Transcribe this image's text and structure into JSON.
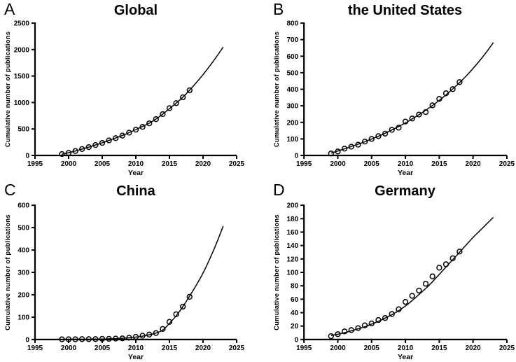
{
  "figure": {
    "background": "#ffffff",
    "ink": "#000000",
    "marker": "open-circle"
  },
  "chart_data": [
    {
      "type": "scatter",
      "panel": "A",
      "title": "Global",
      "xlabel": "Year",
      "ylabel": "Cumulative number of publications",
      "xlim": [
        1995,
        2025
      ],
      "xticks": [
        1995,
        2000,
        2005,
        2010,
        2015,
        2020,
        2025
      ],
      "ylim": [
        0,
        2500
      ],
      "yticks": [
        0,
        500,
        1000,
        1500,
        2000,
        2500
      ],
      "grid": false,
      "legend": null,
      "series": [
        {
          "name": "observed",
          "style": "scatter",
          "x": [
            1999,
            2000,
            2001,
            2002,
            2003,
            2004,
            2005,
            2006,
            2007,
            2008,
            2009,
            2010,
            2011,
            2012,
            2013,
            2014,
            2015,
            2016,
            2017,
            2018
          ],
          "y": [
            26,
            48,
            83,
            122,
            158,
            197,
            237,
            285,
            327,
            374,
            430,
            487,
            540,
            606,
            685,
            780,
            893,
            988,
            1099,
            1232
          ]
        },
        {
          "name": "fit",
          "style": "line",
          "x": [
            1999,
            2000,
            2001,
            2002,
            2003,
            2004,
            2005,
            2006,
            2007,
            2008,
            2009,
            2010,
            2011,
            2012,
            2013,
            2014,
            2015,
            2016,
            2017,
            2018,
            2019,
            2020,
            2021,
            2022,
            2023
          ],
          "y": [
            24,
            52,
            85,
            121,
            158,
            198,
            240,
            285,
            329,
            377,
            431,
            489,
            547,
            610,
            688,
            780,
            884,
            988,
            1100,
            1233,
            1376,
            1527,
            1690,
            1864,
            2048
          ]
        }
      ]
    },
    {
      "type": "scatter",
      "panel": "B",
      "title": "the United States",
      "xlabel": "Year",
      "ylabel": "Cumulative number of publications",
      "xlim": [
        1995,
        2025
      ],
      "xticks": [
        1995,
        2000,
        2005,
        2010,
        2015,
        2020,
        2025
      ],
      "ylim": [
        0,
        800
      ],
      "yticks": [
        0,
        100,
        200,
        300,
        400,
        500,
        600,
        700,
        800
      ],
      "grid": false,
      "legend": null,
      "series": [
        {
          "name": "observed",
          "style": "scatter",
          "x": [
            1999,
            2000,
            2001,
            2002,
            2003,
            2004,
            2005,
            2006,
            2007,
            2008,
            2009,
            2010,
            2011,
            2012,
            2013,
            2014,
            2015,
            2016,
            2017,
            2018
          ],
          "y": [
            12,
            24,
            41,
            53,
            65,
            84,
            100,
            117,
            132,
            155,
            168,
            205,
            223,
            247,
            262,
            303,
            342,
            376,
            401,
            443
          ]
        },
        {
          "name": "fit",
          "style": "line",
          "x": [
            1999,
            2000,
            2001,
            2002,
            2003,
            2004,
            2005,
            2006,
            2007,
            2008,
            2009,
            2010,
            2011,
            2012,
            2013,
            2014,
            2015,
            2016,
            2017,
            2018,
            2019,
            2020,
            2021,
            2022,
            2023
          ],
          "y": [
            14,
            27,
            40,
            54,
            68,
            83,
            99,
            116,
            134,
            154,
            175,
            197,
            221,
            246,
            273,
            302,
            333,
            366,
            402,
            440,
            481,
            526,
            574,
            626,
            682
          ]
        }
      ]
    },
    {
      "type": "scatter",
      "panel": "C",
      "title": "China",
      "xlabel": "Year",
      "ylabel": "Cumulative number of publications",
      "xlim": [
        1995,
        2025
      ],
      "xticks": [
        1995,
        2000,
        2005,
        2010,
        2015,
        2020,
        2025
      ],
      "ylim": [
        0,
        600
      ],
      "yticks": [
        0,
        100,
        200,
        300,
        400,
        500,
        600
      ],
      "grid": false,
      "legend": null,
      "series": [
        {
          "name": "observed",
          "style": "scatter",
          "x": [
            1999,
            2000,
            2001,
            2002,
            2003,
            2004,
            2005,
            2006,
            2007,
            2008,
            2009,
            2010,
            2011,
            2012,
            2013,
            2014,
            2015,
            2016,
            2017,
            2018
          ],
          "y": [
            1,
            1,
            1,
            2,
            2,
            2,
            3,
            3,
            4,
            5,
            8,
            12,
            17,
            22,
            29,
            47,
            79,
            113,
            147,
            191
          ]
        },
        {
          "name": "fit",
          "style": "line",
          "x": [
            1999,
            2000,
            2001,
            2002,
            2003,
            2004,
            2005,
            2006,
            2007,
            2008,
            2009,
            2010,
            2011,
            2012,
            2013,
            2014,
            2015,
            2016,
            2017,
            2018,
            2019,
            2020,
            2021,
            2022,
            2023
          ],
          "y": [
            0,
            0,
            1,
            1,
            1,
            2,
            2,
            3,
            4,
            6,
            8,
            11,
            15,
            21,
            29,
            42,
            72,
            106,
            147,
            194,
            243,
            297,
            360,
            430,
            507
          ]
        }
      ]
    },
    {
      "type": "scatter",
      "panel": "D",
      "title": "Germany",
      "xlabel": "Year",
      "ylabel": "Cumulative number of publications",
      "xlim": [
        1995,
        2025
      ],
      "xticks": [
        1995,
        2000,
        2005,
        2010,
        2015,
        2020,
        2025
      ],
      "ylim": [
        0,
        200
      ],
      "yticks": [
        0,
        20,
        40,
        60,
        80,
        100,
        120,
        140,
        160,
        180,
        200
      ],
      "grid": false,
      "legend": null,
      "series": [
        {
          "name": "observed",
          "style": "scatter",
          "x": [
            1999,
            2000,
            2001,
            2002,
            2003,
            2004,
            2005,
            2006,
            2007,
            2008,
            2009,
            2010,
            2011,
            2012,
            2013,
            2014,
            2015,
            2016,
            2017,
            2018
          ],
          "y": [
            5,
            8,
            12,
            14,
            17,
            21,
            24,
            29,
            32,
            38,
            45,
            56,
            65,
            73,
            83,
            94,
            107,
            112,
            121,
            131
          ]
        },
        {
          "name": "fit",
          "style": "line",
          "x": [
            1999,
            2000,
            2001,
            2002,
            2003,
            2004,
            2005,
            2006,
            2007,
            2008,
            2009,
            2010,
            2011,
            2012,
            2013,
            2014,
            2015,
            2016,
            2017,
            2018,
            2019,
            2020,
            2021,
            2022,
            2023
          ],
          "y": [
            6,
            8,
            10,
            13,
            16,
            19,
            23,
            27,
            32,
            37,
            43,
            50,
            58,
            67,
            76,
            86,
            97,
            108,
            119,
            130,
            141,
            152,
            162,
            172,
            182
          ]
        }
      ]
    }
  ]
}
